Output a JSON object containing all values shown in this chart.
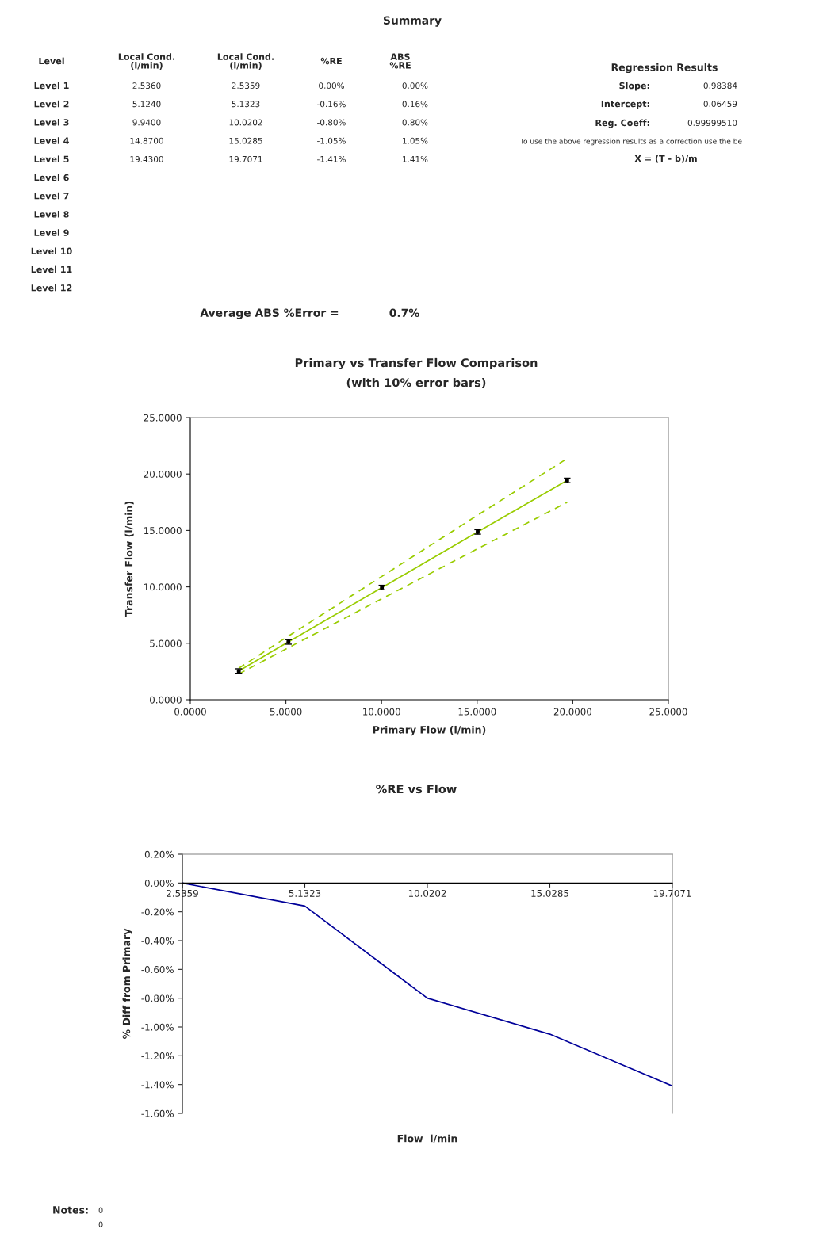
{
  "chart_data": [
    {
      "type": "other",
      "title": "Summary",
      "annotations": [
        "Level",
        "Local Cond.\n(l/min)",
        "Local Cond.\n(l/min)",
        "%RE",
        "ABS\n%RE",
        "Level 1",
        "2.5360",
        "2.5359",
        "0.00%",
        "0.00%",
        "Level 2",
        "5.1240",
        "5.1323",
        "-0.16%",
        "0.16%",
        "Level 3",
        "9.9400",
        "10.0202",
        "-0.80%",
        "0.80%",
        "Level 4",
        "14.8700",
        "15.0285",
        "-1.05%",
        "1.05%",
        "Level 5",
        "19.4300",
        "19.7071",
        "-1.41%",
        "1.41%",
        "Level 6",
        "Level 7",
        "Level 8",
        "Level 9",
        "Level 10",
        "Level 11",
        "Level 12",
        "Average ABS %Error =",
        "0.7%",
        "Regression Results",
        "Slope:",
        "0.98384",
        "Intercept:",
        "0.06459",
        "Reg. Coeff:",
        "0.99999510",
        "To use the above regression results as a correction use the be",
        "X = (T - b)/m",
        "Notes:",
        "0",
        "0"
      ]
    },
    {
      "type": "scatter",
      "title": "Primary vs Transfer Flow Comparison",
      "subtitle": "(with 10% error bars)",
      "xlabel": "Primary Flow (l/min)",
      "ylabel": "Transfer Flow (l/min)",
      "x": [
        2.5359,
        5.1323,
        10.0202,
        15.0285,
        19.7071
      ],
      "xlim": [
        0,
        25
      ],
      "ylim": [
        0,
        25
      ],
      "xticks": [
        {
          "value": 0,
          "label": "0.0000"
        },
        {
          "value": 5,
          "label": "5.0000"
        },
        {
          "value": 10,
          "label": "10.0000"
        },
        {
          "value": 15,
          "label": "15.0000"
        },
        {
          "value": 20,
          "label": "20.0000"
        },
        {
          "value": 25,
          "label": "25.0000"
        }
      ],
      "yticks": [
        {
          "value": 0,
          "label": "0.0000"
        },
        {
          "value": 5,
          "label": "5.0000"
        },
        {
          "value": 10,
          "label": "10.0000"
        },
        {
          "value": 15,
          "label": "15.0000"
        },
        {
          "value": 20,
          "label": "20.0000"
        },
        {
          "value": 25,
          "label": "25.0000"
        }
      ],
      "grid": false,
      "series": [
        {
          "type": "line",
          "color": "#99cc00",
          "line_style": "solid",
          "values": [
            2.54,
            5.12,
            9.94,
            14.87,
            19.43
          ]
        },
        {
          "type": "line",
          "color": "#99cc00",
          "line_style": "dashed",
          "values": [
            2.79,
            5.64,
            10.93,
            16.36,
            21.37
          ]
        },
        {
          "type": "line",
          "color": "#99cc00",
          "line_style": "dashed",
          "values": [
            2.28,
            4.61,
            8.95,
            13.38,
            17.49
          ]
        },
        {
          "type": "scatter",
          "color": "#000000",
          "marker": "square",
          "values": [
            2.54,
            5.12,
            9.94,
            14.87,
            19.43
          ],
          "errors": [
            0.2,
            0.2,
            0.2,
            0.2,
            0.2
          ]
        }
      ]
    },
    {
      "type": "line",
      "title": "%RE vs Flow",
      "xlabel": "Flow  l/min",
      "ylabel": "% Diff from Primary",
      "categories": [
        "2.5359",
        "5.1323",
        "10.0202",
        "15.0285",
        "19.7071"
      ],
      "ylim": [
        -1.6,
        0.2
      ],
      "yticks": [
        {
          "value": 0.2,
          "label": "0.20%"
        },
        {
          "value": 0,
          "label": "0.00%"
        },
        {
          "value": -0.2,
          "label": "-0.20%"
        },
        {
          "value": -0.4,
          "label": "-0.40%"
        },
        {
          "value": -0.6,
          "label": "-0.60%"
        },
        {
          "value": -0.8,
          "label": "-0.80%"
        },
        {
          "value": -1.0,
          "label": "-1.00%"
        },
        {
          "value": -1.2,
          "label": "-1.20%"
        },
        {
          "value": -1.4,
          "label": "-1.40%"
        },
        {
          "value": -1.6,
          "label": "-1.60%"
        }
      ],
      "grid": false,
      "marker": "none",
      "line_style": "solid",
      "series": [
        {
          "color": "#000099",
          "values": [
            0.0,
            -0.16,
            -0.8,
            -1.05,
            -1.41
          ]
        }
      ]
    }
  ]
}
